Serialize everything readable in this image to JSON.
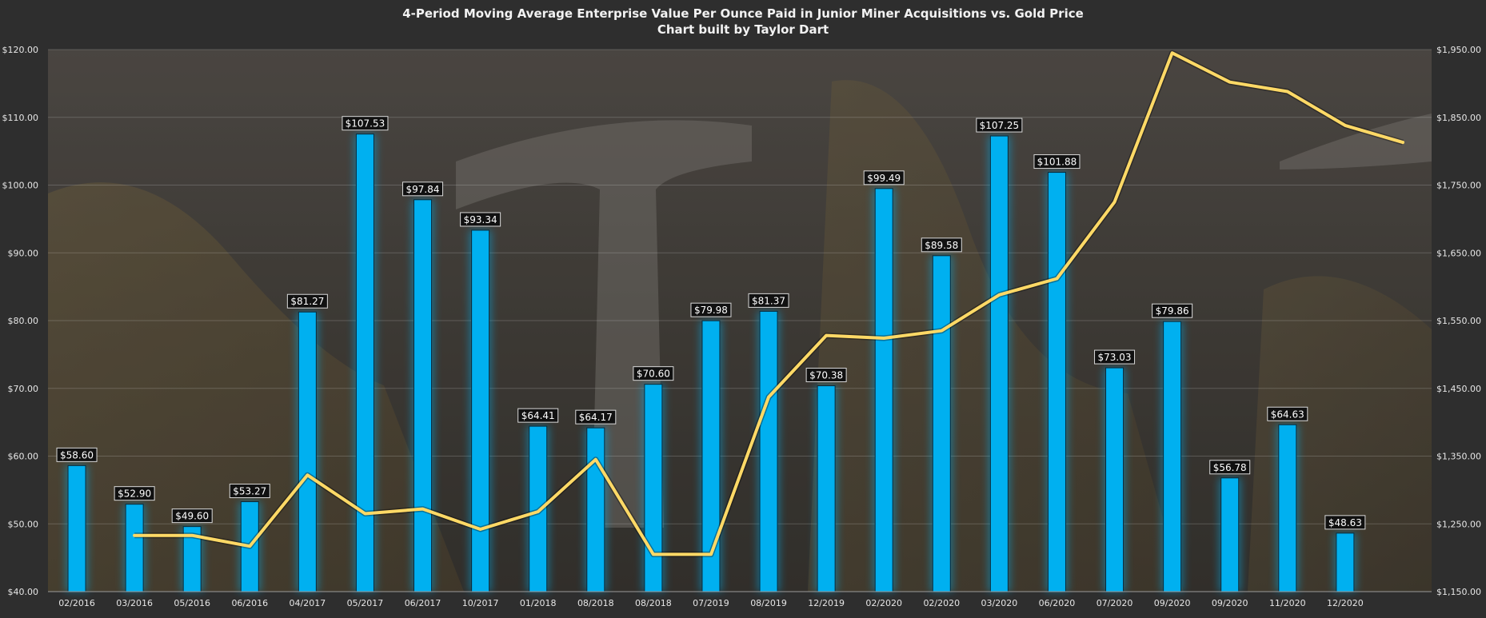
{
  "chart_data": {
    "type": "bar",
    "title": "4-Period Moving Average Enterprise Value Per Ounce Paid in Junior Miner Acquisitions vs. Gold Price",
    "subtitle": "Chart built by Taylor Dart",
    "categories": [
      "02/2016",
      "03/2016",
      "05/2016",
      "06/2016",
      "04/2017",
      "05/2017",
      "06/2017",
      "10/2017",
      "01/2018",
      "08/2018",
      "08/2018",
      "07/2019",
      "08/2019",
      "12/2019",
      "02/2020",
      "02/2020",
      "03/2020",
      "06/2020",
      "07/2020",
      "09/2020",
      "09/2020",
      "11/2020",
      "12/2020"
    ],
    "series": [
      {
        "type": "bar",
        "axis": "left",
        "color": "#00b0f0",
        "values": [
          58.6,
          52.9,
          49.6,
          53.27,
          81.27,
          107.53,
          97.84,
          93.34,
          64.41,
          64.17,
          70.6,
          79.98,
          81.37,
          70.38,
          99.49,
          89.58,
          107.25,
          101.88,
          73.03,
          79.86,
          56.78,
          64.63,
          48.63
        ],
        "labels": [
          "$58.60",
          "$52.90",
          "$49.60",
          "$53.27",
          "$81.27",
          "$107.53",
          "$97.84",
          "$93.34",
          "$64.41",
          "$64.17",
          "$70.60",
          "$79.98",
          "$81.37",
          "$70.38",
          "$99.49",
          "$89.58",
          "$107.25",
          "$101.88",
          "$73.03",
          "$79.86",
          "$56.78",
          "$64.63",
          "$48.63"
        ]
      },
      {
        "type": "line",
        "axis": "right",
        "color": "#ffd966",
        "x_index": [
          1,
          2,
          3,
          4,
          5,
          6,
          7,
          8,
          9,
          10,
          11,
          12,
          13,
          14,
          15,
          16,
          17,
          18,
          19,
          20,
          21,
          22,
          23
        ],
        "values": [
          1233,
          1233,
          1217,
          1322,
          1265,
          1272,
          1242,
          1268,
          1345,
          1205,
          1205,
          1437,
          1528,
          1524,
          1535,
          1588,
          1612,
          1725,
          1945,
          1902,
          1888,
          1838,
          1813
        ]
      }
    ],
    "y_left": {
      "lim": [
        40,
        120
      ],
      "ticks": [
        40,
        50,
        60,
        70,
        80,
        90,
        100,
        110,
        120
      ],
      "tick_labels": [
        "$40.00",
        "$50.00",
        "$60.00",
        "$70.00",
        "$80.00",
        "$90.00",
        "$100.00",
        "$110.00",
        "$120.00"
      ]
    },
    "y_right": {
      "lim": [
        1150,
        1950
      ],
      "ticks": [
        1150,
        1250,
        1350,
        1450,
        1550,
        1650,
        1750,
        1850,
        1950
      ],
      "tick_labels": [
        "$1,150.00",
        "$1,250.00",
        "$1,350.00",
        "$1,450.00",
        "$1,550.00",
        "$1,650.00",
        "$1,750.00",
        "$1,850.00",
        "$1,950.00"
      ]
    },
    "grid": true,
    "legend": "none"
  },
  "colors": {
    "background": "#2e2e2e",
    "bar": "#00b0f0",
    "line": "#ffd966",
    "label_bg": "#111111",
    "text": "#e6e6e6"
  }
}
